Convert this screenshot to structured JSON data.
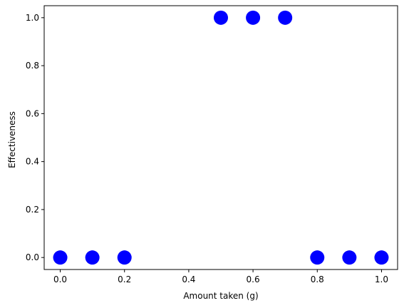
{
  "chart_data": {
    "type": "scatter",
    "title": "",
    "xlabel": "Amount taken (g)",
    "ylabel": "Effectiveness",
    "xlim": [
      -0.05,
      1.05
    ],
    "ylim": [
      -0.05,
      1.05
    ],
    "x_ticks": [
      0.0,
      0.2,
      0.4,
      0.6,
      0.8,
      1.0
    ],
    "y_ticks": [
      0.0,
      0.2,
      0.4,
      0.6,
      0.8,
      1.0
    ],
    "x_tick_labels": [
      "0.0",
      "0.2",
      "0.4",
      "0.6",
      "0.8",
      "1.0"
    ],
    "y_tick_labels": [
      "0.0",
      "0.2",
      "0.4",
      "0.6",
      "0.8",
      "1.0"
    ],
    "grid": false,
    "marker_color": "#0000ff",
    "points": [
      {
        "x": 0.0,
        "y": 0.0
      },
      {
        "x": 0.1,
        "y": 0.0
      },
      {
        "x": 0.2,
        "y": 0.0
      },
      {
        "x": 0.5,
        "y": 1.0
      },
      {
        "x": 0.6,
        "y": 1.0
      },
      {
        "x": 0.7,
        "y": 1.0
      },
      {
        "x": 0.8,
        "y": 0.0
      },
      {
        "x": 0.9,
        "y": 0.0
      },
      {
        "x": 1.0,
        "y": 0.0
      }
    ]
  }
}
